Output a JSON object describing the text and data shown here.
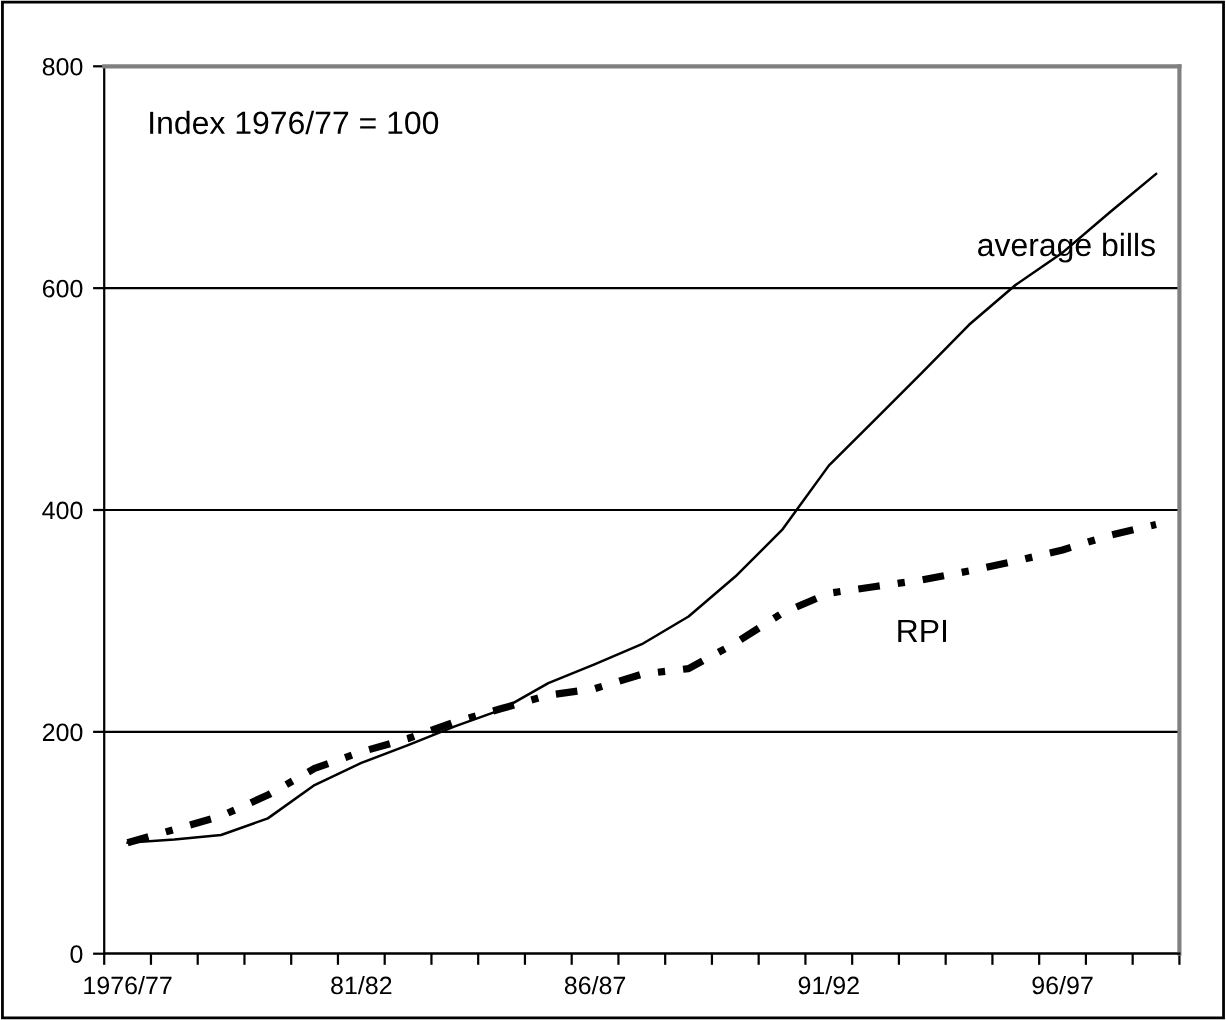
{
  "chart_data": {
    "type": "line",
    "categories": [
      "1976/77",
      null,
      null,
      null,
      null,
      "81/82",
      null,
      null,
      null,
      null,
      "86/87",
      null,
      null,
      null,
      null,
      "91/92",
      null,
      null,
      null,
      null,
      "96/97",
      null,
      null
    ],
    "series": [
      {
        "name": "average bills",
        "color": "#000000",
        "line_style": "solid",
        "values": [
          100,
          103,
          107,
          122,
          152,
          172,
          188,
          205,
          220,
          244,
          261,
          279,
          304,
          340,
          382,
          440,
          482,
          524,
          567,
          603,
          632,
          668,
          703
        ]
      },
      {
        "name": "RPI",
        "color": "#000000",
        "line_style": "dashed",
        "values": [
          100,
          112,
          124,
          143,
          167,
          182,
          194,
          209,
          221,
          233,
          239,
          252,
          257,
          280,
          307,
          325,
          331,
          337,
          345,
          354,
          364,
          377,
          387
        ]
      }
    ],
    "ylim": [
      0,
      800
    ],
    "yticks": [
      0,
      200,
      400,
      600,
      800
    ],
    "grid": "y",
    "legend": false,
    "marker": "none",
    "annotations": [
      "Index 1976/77 = 100"
    ]
  }
}
